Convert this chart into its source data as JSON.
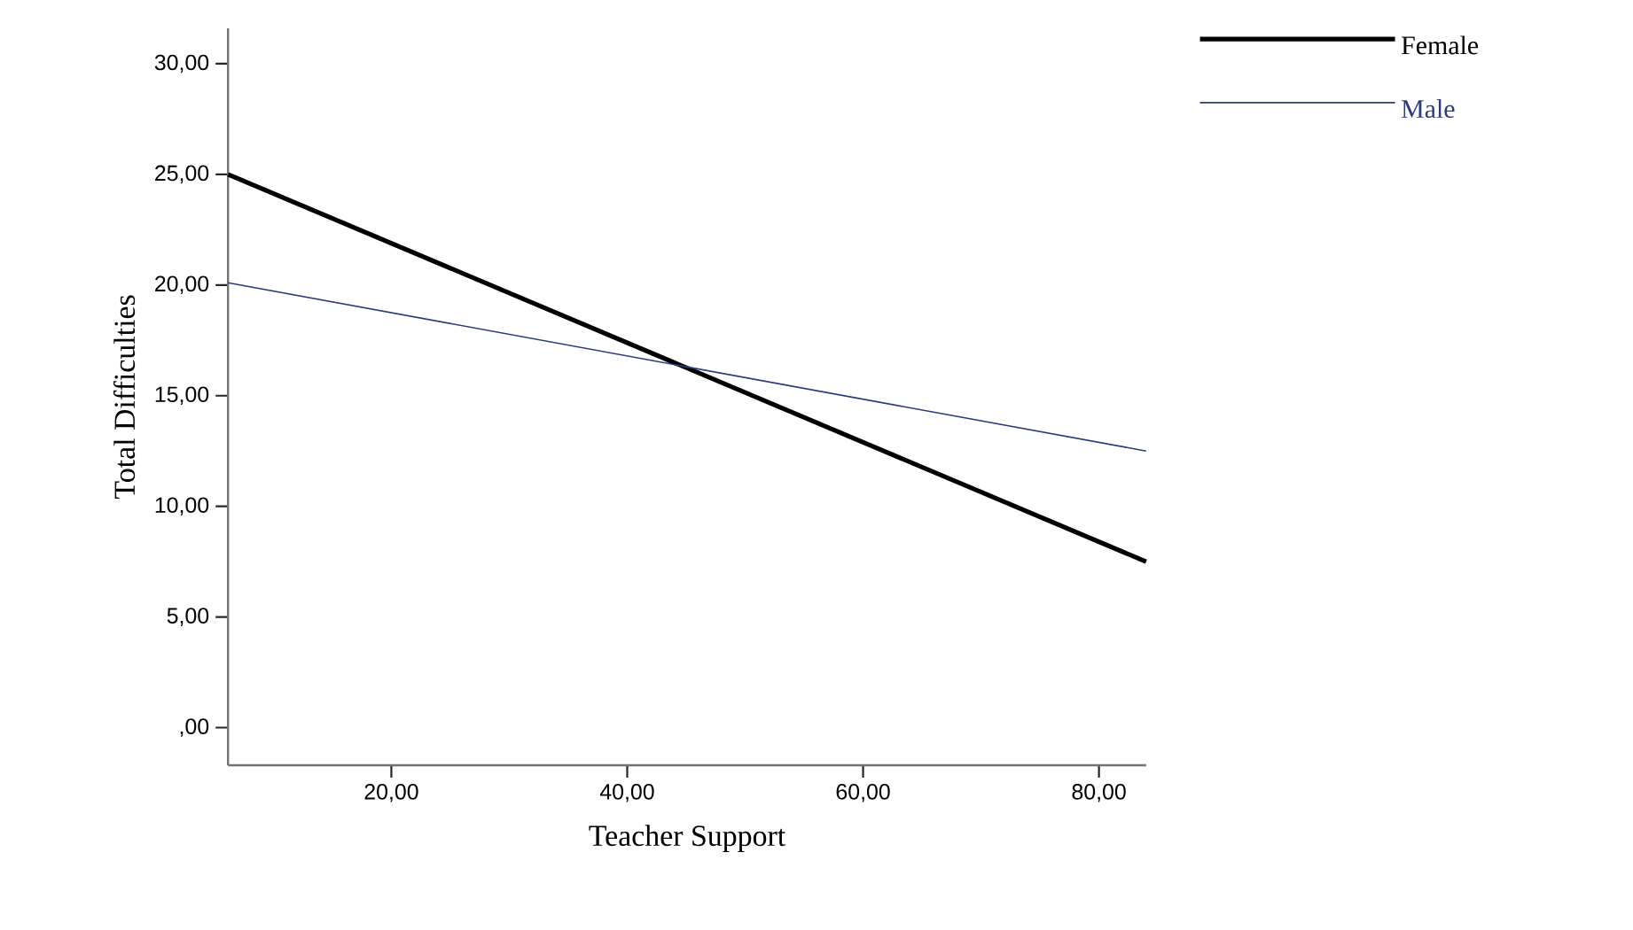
{
  "chart_data": {
    "type": "line",
    "xlabel": "Teacher Support",
    "ylabel": "Total Difficulties",
    "x": [
      6.15,
      84.0
    ],
    "series": [
      {
        "name": "Female",
        "color": "#000000",
        "values": [
          25.0,
          7.5
        ]
      },
      {
        "name": "Male",
        "color": "#2b3b7e",
        "values": [
          20.1,
          12.5
        ]
      }
    ],
    "xlim": [
      6.15,
      84.0
    ],
    "ylim": [
      -1.7,
      31.6
    ],
    "xticks": [
      {
        "value": 20,
        "label": "20,00"
      },
      {
        "value": 40,
        "label": "40,00"
      },
      {
        "value": 60,
        "label": "60,00"
      },
      {
        "value": 80,
        "label": "80,00"
      }
    ],
    "yticks": [
      {
        "value": 0,
        "label": ",00"
      },
      {
        "value": 5,
        "label": "5,00"
      },
      {
        "value": 10,
        "label": "10,00"
      },
      {
        "value": 15,
        "label": "15,00"
      },
      {
        "value": 20,
        "label": "20,00"
      },
      {
        "value": 25,
        "label": "25,00"
      },
      {
        "value": 30,
        "label": "30,00"
      }
    ],
    "grid": false,
    "legend": "top right",
    "marker": "none",
    "line_style": "solid"
  }
}
